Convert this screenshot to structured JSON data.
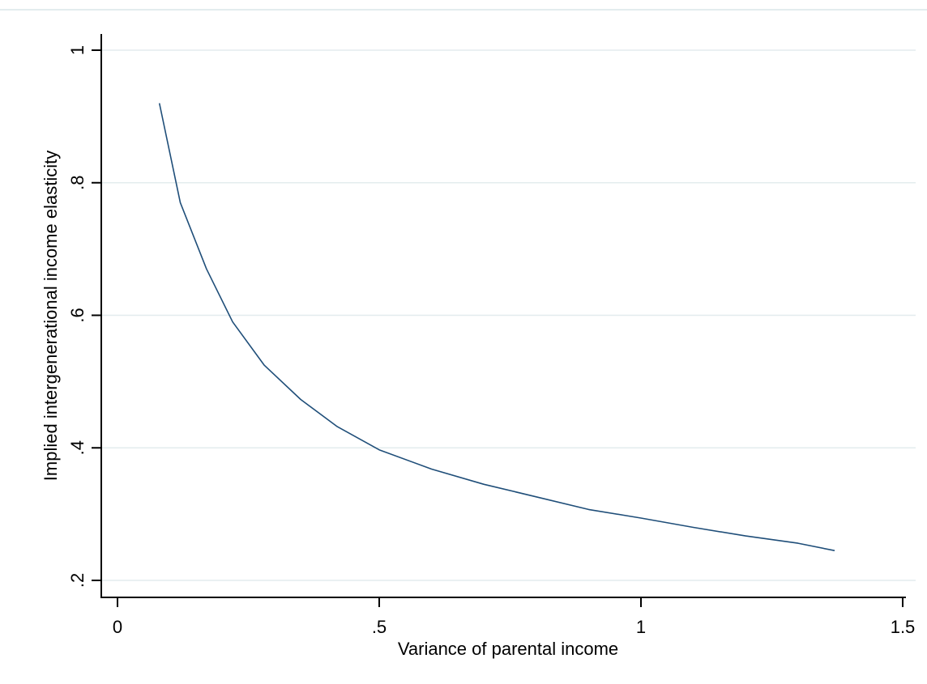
{
  "chart_data": {
    "type": "line",
    "title": "",
    "xlabel": "Variance of parental income",
    "ylabel": "Implied intergenerational income elasticity",
    "xlim": [
      -0.03,
      1.55
    ],
    "ylim": [
      0.19,
      1.03
    ],
    "x_ticks": [
      0,
      0.5,
      1,
      1.5
    ],
    "x_tick_labels": [
      "0",
      ".5",
      "1",
      "1.5"
    ],
    "y_ticks": [
      0.2,
      0.4,
      0.6,
      0.8,
      1
    ],
    "y_tick_labels": [
      ".2",
      ".4",
      ".6",
      ".8",
      "1"
    ],
    "grid": "horizontal",
    "legend": "none",
    "series": [
      {
        "color": "#1f4e79",
        "x": [
          0.08,
          0.12,
          0.17,
          0.22,
          0.28,
          0.35,
          0.42,
          0.5,
          0.6,
          0.7,
          0.8,
          0.9,
          1.0,
          1.1,
          1.2,
          1.3,
          1.37
        ],
        "y": [
          0.92,
          0.77,
          0.67,
          0.59,
          0.525,
          0.473,
          0.432,
          0.397,
          0.368,
          0.345,
          0.326,
          0.307,
          0.294,
          0.28,
          0.267,
          0.256,
          0.245
        ]
      }
    ]
  }
}
